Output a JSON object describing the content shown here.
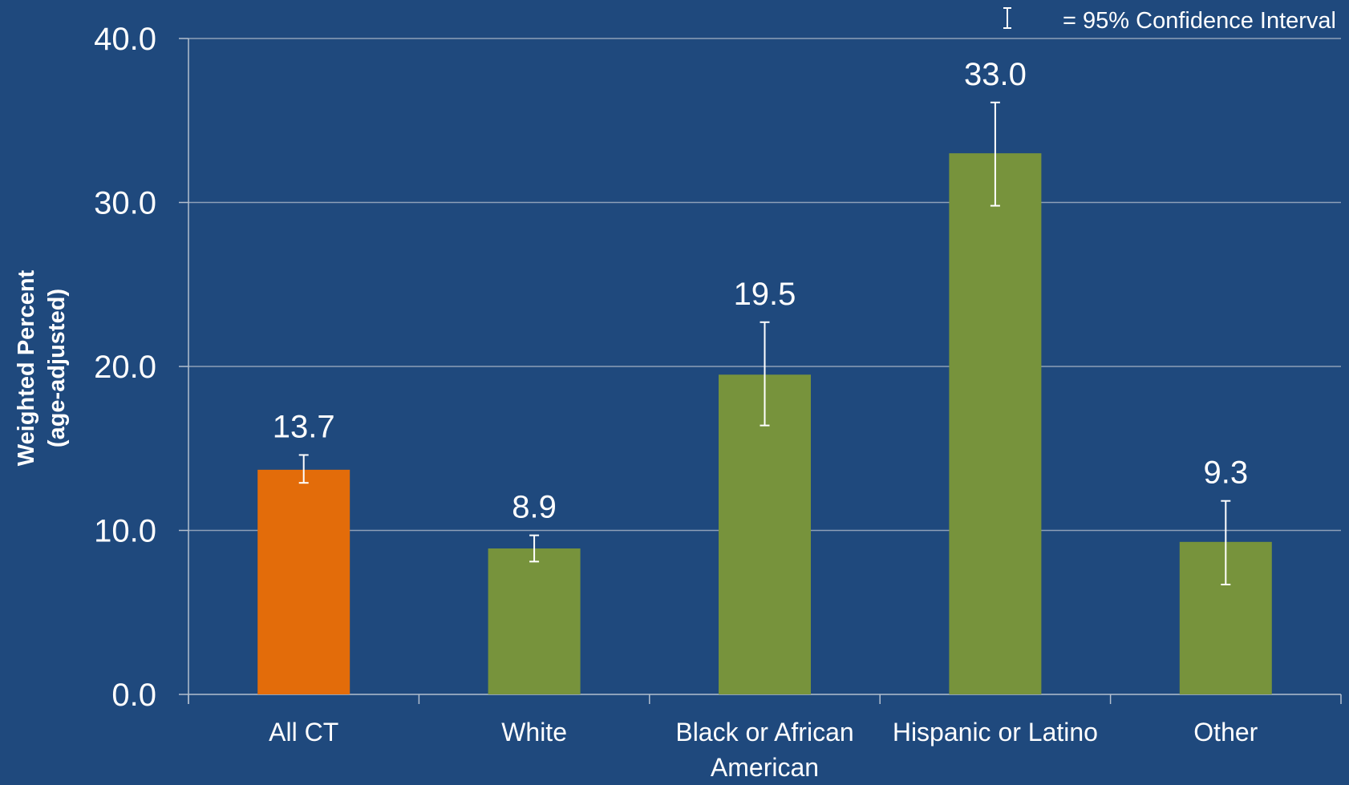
{
  "chart_data": {
    "type": "bar",
    "title": "",
    "legend_note": "= 95% Confidence Interval",
    "ylabel_line1": "Weighted Percent",
    "ylabel_line2": "(age-adjusted)",
    "xlabel": "",
    "ylim": [
      0,
      40
    ],
    "yticks": [
      "0.0",
      "10.0",
      "20.0",
      "30.0",
      "40.0"
    ],
    "ytick_values": [
      0,
      10,
      20,
      30,
      40
    ],
    "grid": true,
    "categories": [
      [
        "All CT"
      ],
      [
        "White"
      ],
      [
        "Black or African",
        "American"
      ],
      [
        "Hispanic or Latino"
      ],
      [
        "Other"
      ]
    ],
    "values": [
      13.7,
      8.9,
      19.5,
      33.0,
      9.3
    ],
    "value_labels": [
      "13.7",
      "8.9",
      "19.5",
      "33.0",
      "9.3"
    ],
    "ci_low": [
      12.9,
      8.1,
      16.4,
      29.8,
      6.7
    ],
    "ci_high": [
      14.6,
      9.7,
      22.7,
      36.1,
      11.8
    ],
    "bar_colors": [
      "#e36c0a",
      "#77933c",
      "#77933c",
      "#77933c",
      "#77933c"
    ]
  },
  "colors": {
    "background": "#1f497d",
    "text": "#ffffff",
    "gridline": "#8ea0b8",
    "axis": "#b4bfce"
  }
}
